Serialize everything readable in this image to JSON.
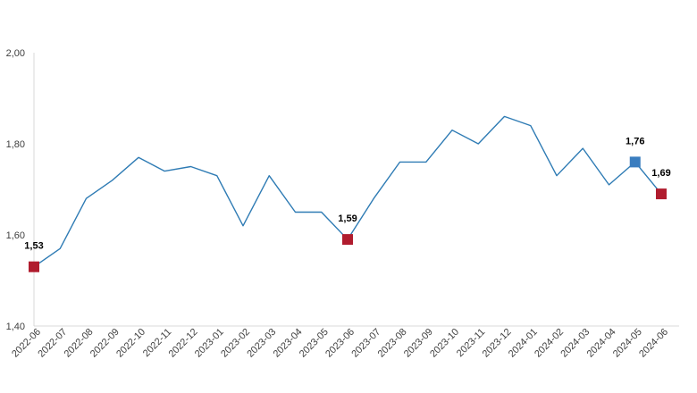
{
  "chart_data": {
    "type": "line",
    "title": "",
    "xlabel": "",
    "ylabel": "",
    "ylim": [
      1.4,
      2.0
    ],
    "yticks": [
      "1,40",
      "1,60",
      "1,80",
      "2,00"
    ],
    "ytick_values": [
      1.4,
      1.6,
      1.8,
      2.0
    ],
    "grid": false,
    "legend": "none",
    "categories": [
      "2022-06",
      "2022-07",
      "2022-08",
      "2022-09",
      "2022-10",
      "2022-11",
      "2022-12",
      "2023-01",
      "2023-02",
      "2023-03",
      "2023-04",
      "2023-05",
      "2023-06",
      "2023-07",
      "2023-08",
      "2023-09",
      "2023-10",
      "2023-11",
      "2023-12",
      "2024-01",
      "2024-02",
      "2024-03",
      "2024-04",
      "2024-05",
      "2024-06"
    ],
    "values": [
      1.53,
      1.57,
      1.68,
      1.72,
      1.77,
      1.74,
      1.75,
      1.73,
      1.62,
      1.73,
      1.65,
      1.65,
      1.59,
      1.68,
      1.76,
      1.76,
      1.83,
      1.8,
      1.86,
      1.84,
      1.73,
      1.79,
      1.71,
      1.76,
      1.69
    ],
    "line_color": "#2e7bb4",
    "highlights": [
      {
        "index": 0,
        "label": "1,53",
        "color": "#b01c2e"
      },
      {
        "index": 12,
        "label": "1,59",
        "color": "#b01c2e"
      },
      {
        "index": 23,
        "label": "1,76",
        "color": "#3a7dbf"
      },
      {
        "index": 24,
        "label": "1,69",
        "color": "#b01c2e"
      }
    ]
  }
}
